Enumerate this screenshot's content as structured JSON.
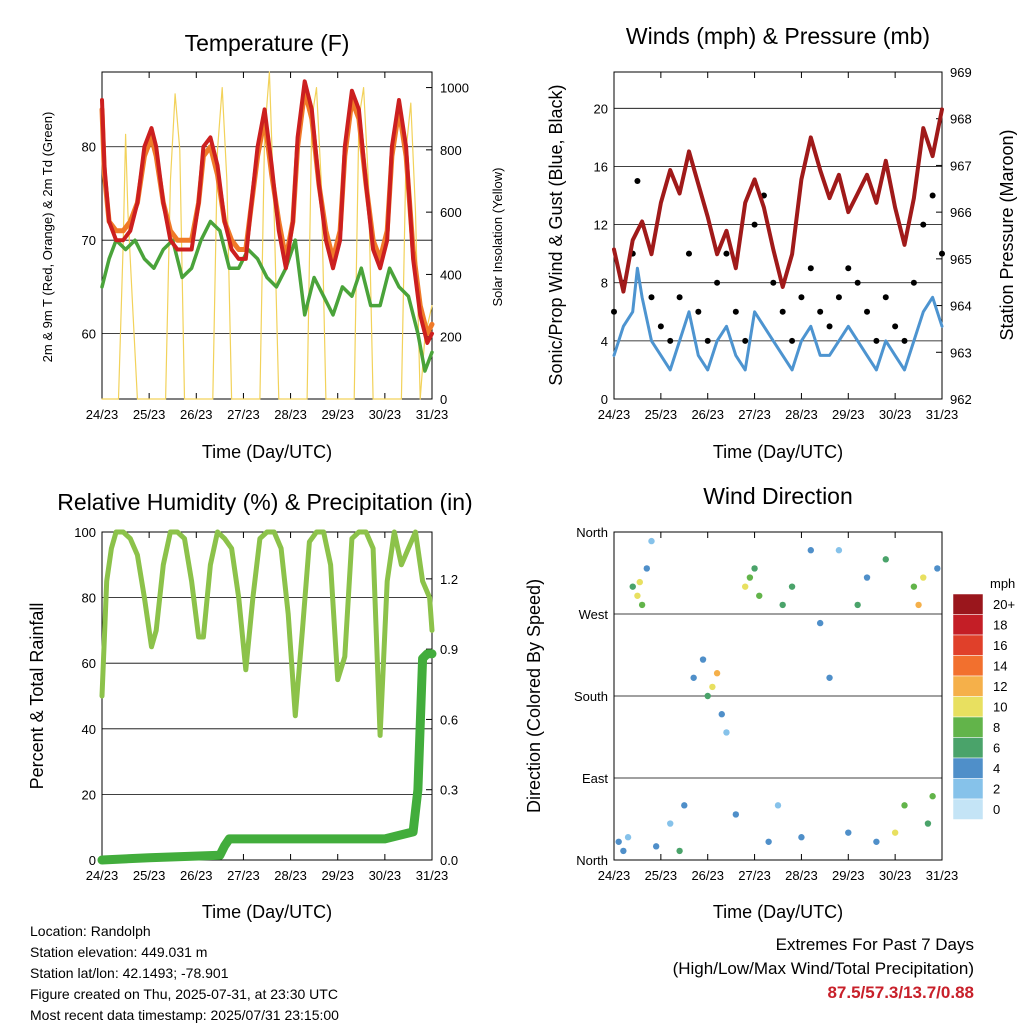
{
  "time_ticks": [
    "24/23",
    "25/23",
    "26/23",
    "27/23",
    "28/23",
    "29/23",
    "30/23",
    "31/23"
  ],
  "colors": {
    "t2m": "#cc1f1f",
    "t9m": "#f07a28",
    "td": "#4aa33a",
    "solar": "#f2d25a",
    "wind": "#4d94d0",
    "gust": "#000000",
    "pressure": "#a01a1a",
    "rh": "#8cc24a",
    "precip": "#42ad3c"
  },
  "chart_data": [
    {
      "type": "line",
      "title": "Temperature (F)",
      "xlabel": "Time (Day/UTC)",
      "ylabel": "2m & 9m T (Red, Orange) & 2m Td (Green)",
      "y2label": "Solar Insolation (Yellow)",
      "ylim": [
        53,
        88
      ],
      "y2lim": [
        0,
        1050
      ],
      "yticks": [
        60,
        70,
        80
      ],
      "y2ticks": [
        0,
        200,
        400,
        600,
        800,
        1000
      ],
      "series": [
        {
          "name": "2m T",
          "x_days": [
            0,
            0.05,
            0.15,
            0.3,
            0.45,
            0.6,
            0.75,
            0.9,
            1.05,
            1.15,
            1.3,
            1.45,
            1.6,
            1.75,
            1.9,
            2.05,
            2.15,
            2.3,
            2.45,
            2.6,
            2.75,
            2.9,
            3.05,
            3.15,
            3.3,
            3.45,
            3.6,
            3.75,
            3.9,
            4.05,
            4.15,
            4.3,
            4.45,
            4.6,
            4.75,
            4.9,
            5.05,
            5.15,
            5.3,
            5.45,
            5.6,
            5.75,
            5.9,
            6.05,
            6.15,
            6.3,
            6.45,
            6.6,
            6.75,
            6.9,
            7.0
          ],
          "values": [
            85,
            78,
            72,
            70,
            70,
            71,
            74,
            80,
            82,
            80,
            74,
            70,
            69,
            69,
            69,
            74,
            80,
            81,
            78,
            72,
            69,
            68,
            68,
            73,
            80,
            84,
            78,
            71,
            67,
            72,
            81,
            87,
            84,
            76,
            70,
            67,
            70,
            80,
            86,
            84,
            76,
            69,
            67,
            70,
            80,
            85,
            80,
            68,
            62,
            59,
            60
          ]
        },
        {
          "name": "9m T",
          "x_days": [
            0,
            0.05,
            0.15,
            0.3,
            0.45,
            0.6,
            0.75,
            0.9,
            1.05,
            1.15,
            1.3,
            1.45,
            1.6,
            1.75,
            1.9,
            2.05,
            2.15,
            2.3,
            2.45,
            2.6,
            2.75,
            2.9,
            3.05,
            3.15,
            3.3,
            3.45,
            3.6,
            3.75,
            3.9,
            4.05,
            4.15,
            4.3,
            4.45,
            4.6,
            4.75,
            4.9,
            5.05,
            5.15,
            5.3,
            5.45,
            5.6,
            5.75,
            5.9,
            6.05,
            6.15,
            6.3,
            6.45,
            6.6,
            6.75,
            6.9,
            7.0
          ],
          "values": [
            84,
            77,
            72,
            71,
            71,
            72,
            74,
            79,
            81,
            79,
            74,
            71,
            70,
            70,
            70,
            74,
            79,
            80,
            77,
            72,
            70,
            69,
            69,
            73,
            79,
            83,
            77,
            72,
            68,
            72,
            80,
            86,
            83,
            76,
            71,
            68,
            71,
            79,
            85,
            83,
            76,
            70,
            68,
            71,
            79,
            84,
            79,
            69,
            63,
            60,
            61
          ]
        },
        {
          "name": "2m Td",
          "x_days": [
            0,
            0.15,
            0.3,
            0.5,
            0.7,
            0.9,
            1.1,
            1.3,
            1.5,
            1.7,
            1.9,
            2.1,
            2.3,
            2.5,
            2.7,
            2.9,
            3.1,
            3.3,
            3.5,
            3.7,
            3.9,
            4.1,
            4.3,
            4.5,
            4.7,
            4.9,
            5.1,
            5.3,
            5.5,
            5.7,
            5.9,
            6.1,
            6.3,
            6.5,
            6.7,
            6.85,
            7.0
          ],
          "values": [
            65,
            68,
            70,
            69,
            70,
            68,
            67,
            69,
            70,
            66,
            67,
            70,
            72,
            71,
            67,
            67,
            69,
            68,
            66,
            65,
            67,
            70,
            62,
            66,
            64,
            62,
            65,
            64,
            67,
            63,
            63,
            67,
            65,
            64,
            60,
            56,
            58
          ]
        },
        {
          "name": "Solar Insolation",
          "axis": "y2",
          "x_days": [
            0,
            0.35,
            0.45,
            0.5,
            0.55,
            0.65,
            0.75,
            1.35,
            1.45,
            1.55,
            1.65,
            1.75,
            2.35,
            2.45,
            2.55,
            2.65,
            2.75,
            3.35,
            3.45,
            3.55,
            3.65,
            3.75,
            4.35,
            4.45,
            4.55,
            4.65,
            4.75,
            5.35,
            5.45,
            5.55,
            5.65,
            5.75,
            6.35,
            6.45,
            6.55,
            6.65,
            6.75,
            6.85,
            7.0
          ],
          "values": [
            0,
            0,
            500,
            850,
            600,
            300,
            0,
            0,
            700,
            980,
            800,
            0,
            0,
            800,
            1000,
            700,
            0,
            0,
            850,
            1050,
            600,
            0,
            0,
            900,
            1000,
            700,
            0,
            0,
            900,
            1000,
            700,
            0,
            0,
            800,
            950,
            600,
            0,
            200,
            300
          ]
        }
      ]
    },
    {
      "type": "line",
      "title": "Winds (mph) & Pressure (mb)",
      "xlabel": "Time (Day/UTC)",
      "ylabel": "Sonic/Prop Wind & Gust (Blue, Black)",
      "y2label": "Station Pressure (Maroon)",
      "ylim": [
        0,
        22.5
      ],
      "y2lim": [
        962,
        969
      ],
      "yticks": [
        0,
        4,
        8,
        12,
        16,
        20
      ],
      "y2ticks": [
        962,
        963,
        964,
        965,
        966,
        967,
        968,
        969
      ],
      "series": [
        {
          "name": "Sonic/Prop Wind",
          "x_days": [
            0,
            0.2,
            0.4,
            0.5,
            0.6,
            0.8,
            1.0,
            1.2,
            1.4,
            1.6,
            1.8,
            2.0,
            2.2,
            2.4,
            2.6,
            2.8,
            3.0,
            3.2,
            3.4,
            3.6,
            3.8,
            4.0,
            4.2,
            4.4,
            4.6,
            4.8,
            5.0,
            5.2,
            5.4,
            5.6,
            5.8,
            6.0,
            6.2,
            6.4,
            6.6,
            6.8,
            7.0
          ],
          "values": [
            3,
            5,
            6,
            9,
            7,
            4,
            3,
            2,
            4,
            6,
            3,
            2,
            4,
            5,
            3,
            2,
            6,
            5,
            4,
            3,
            2,
            4,
            5,
            3,
            3,
            4,
            5,
            4,
            3,
            2,
            4,
            3,
            2,
            4,
            6,
            7,
            5
          ]
        },
        {
          "name": "Gust",
          "x_days": [
            0,
            0.2,
            0.4,
            0.5,
            0.6,
            0.8,
            1.0,
            1.2,
            1.4,
            1.6,
            1.8,
            2.0,
            2.2,
            2.4,
            2.6,
            2.8,
            3.0,
            3.2,
            3.4,
            3.6,
            3.8,
            4.0,
            4.2,
            4.4,
            4.6,
            4.8,
            5.0,
            5.2,
            5.4,
            5.6,
            5.8,
            6.0,
            6.2,
            6.4,
            6.6,
            6.8,
            7.0
          ],
          "values": [
            6,
            8,
            10,
            15,
            12,
            7,
            5,
            4,
            7,
            10,
            6,
            4,
            8,
            10,
            6,
            4,
            12,
            14,
            8,
            6,
            4,
            7,
            9,
            6,
            5,
            7,
            9,
            8,
            6,
            4,
            7,
            5,
            4,
            8,
            12,
            14,
            10
          ]
        },
        {
          "name": "Station Pressure",
          "axis": "y2",
          "x_days": [
            0,
            0.2,
            0.4,
            0.6,
            0.8,
            1.0,
            1.2,
            1.4,
            1.6,
            1.8,
            2.0,
            2.2,
            2.4,
            2.6,
            2.8,
            3.0,
            3.2,
            3.4,
            3.6,
            3.8,
            4.0,
            4.2,
            4.4,
            4.6,
            4.8,
            5.0,
            5.2,
            5.4,
            5.6,
            5.8,
            6.0,
            6.2,
            6.4,
            6.6,
            6.8,
            7.0
          ],
          "values": [
            965.2,
            964.3,
            965.4,
            965.8,
            965.1,
            966.2,
            966.9,
            966.4,
            967.3,
            966.6,
            965.9,
            965.1,
            965.6,
            964.8,
            966.2,
            966.7,
            966.1,
            965.2,
            964.4,
            965.1,
            966.7,
            967.6,
            966.9,
            966.3,
            966.8,
            966.0,
            966.4,
            966.8,
            966.2,
            967.1,
            966.1,
            965.3,
            966.3,
            967.8,
            967.2,
            968.2
          ]
        }
      ]
    },
    {
      "type": "line",
      "title": "Relative Humidity (%) & Precipitation (in)",
      "xlabel": "Time (Day/UTC)",
      "ylabel": "Percent & Total Rainfall",
      "ylim": [
        0,
        100
      ],
      "y2lim": [
        0,
        1.4
      ],
      "yticks": [
        0,
        20,
        40,
        60,
        80,
        100
      ],
      "y2ticks": [
        "0.0",
        "0.3",
        "0.6",
        "0.9",
        "1.2"
      ],
      "series": [
        {
          "name": "Relative Humidity",
          "x_days": [
            0,
            0.1,
            0.2,
            0.3,
            0.45,
            0.6,
            0.75,
            0.9,
            1.05,
            1.15,
            1.3,
            1.45,
            1.6,
            1.75,
            1.9,
            2.05,
            2.15,
            2.3,
            2.45,
            2.6,
            2.75,
            2.9,
            3.05,
            3.2,
            3.35,
            3.5,
            3.65,
            3.8,
            3.95,
            4.1,
            4.25,
            4.4,
            4.55,
            4.7,
            4.85,
            5.0,
            5.15,
            5.3,
            5.45,
            5.6,
            5.75,
            5.9,
            6.05,
            6.2,
            6.35,
            6.5,
            6.65,
            6.8,
            6.95,
            7.0
          ],
          "values": [
            50,
            85,
            95,
            100,
            100,
            98,
            93,
            80,
            65,
            70,
            90,
            100,
            100,
            98,
            85,
            68,
            68,
            90,
            100,
            98,
            95,
            80,
            58,
            80,
            98,
            100,
            100,
            95,
            75,
            44,
            70,
            97,
            100,
            100,
            90,
            55,
            62,
            98,
            100,
            100,
            95,
            38,
            85,
            100,
            90,
            95,
            100,
            85,
            80,
            70
          ]
        },
        {
          "name": "Total Precipitation",
          "axis": "y2",
          "x_days": [
            0,
            1.0,
            2.5,
            2.6,
            2.7,
            4.0,
            5.0,
            6.0,
            6.6,
            6.7,
            6.8,
            6.9,
            7.0
          ],
          "values": [
            0,
            0.01,
            0.02,
            0.06,
            0.09,
            0.09,
            0.09,
            0.09,
            0.12,
            0.3,
            0.86,
            0.88,
            0.88
          ]
        }
      ]
    },
    {
      "type": "scatter",
      "title": "Wind Direction",
      "xlabel": "Time (Day/UTC)",
      "ylabel": "Direction (Colored By Speed)",
      "ylim": [
        0,
        360
      ],
      "yticks": [
        "North",
        "East",
        "South",
        "West",
        "North"
      ],
      "legend": {
        "title": "mph",
        "labels": [
          "0",
          "2",
          "4",
          "6",
          "8",
          "10",
          "12",
          "14",
          "16",
          "18",
          "20+"
        ],
        "colors": [
          "#c4e4f6",
          "#86c2ea",
          "#4f8fc9",
          "#4aa36a",
          "#62b44a",
          "#e8e060",
          "#f5b04a",
          "#f2702e",
          "#e0402a",
          "#c41e26",
          "#9a161c"
        ]
      },
      "points": [
        [
          0.1,
          20,
          3
        ],
        [
          0.2,
          10,
          4
        ],
        [
          0.3,
          25,
          2
        ],
        [
          0.4,
          300,
          6
        ],
        [
          0.5,
          290,
          10
        ],
        [
          0.55,
          305,
          9
        ],
        [
          0.6,
          280,
          7
        ],
        [
          0.7,
          320,
          4
        ],
        [
          0.8,
          350,
          2
        ],
        [
          0.9,
          15,
          3
        ],
        [
          1.2,
          40,
          2
        ],
        [
          1.4,
          10,
          5
        ],
        [
          1.5,
          60,
          3
        ],
        [
          1.7,
          200,
          3
        ],
        [
          1.9,
          220,
          4
        ],
        [
          2.0,
          180,
          5
        ],
        [
          2.1,
          190,
          10
        ],
        [
          2.2,
          205,
          12
        ],
        [
          2.3,
          160,
          4
        ],
        [
          2.4,
          140,
          2
        ],
        [
          2.6,
          50,
          3
        ],
        [
          2.8,
          300,
          9
        ],
        [
          2.9,
          310,
          8
        ],
        [
          3.0,
          320,
          5
        ],
        [
          3.1,
          290,
          7
        ],
        [
          3.3,
          20,
          4
        ],
        [
          3.5,
          60,
          2
        ],
        [
          3.6,
          280,
          5
        ],
        [
          3.8,
          300,
          6
        ],
        [
          4.0,
          25,
          3
        ],
        [
          4.2,
          340,
          4
        ],
        [
          4.4,
          260,
          3
        ],
        [
          4.6,
          200,
          4
        ],
        [
          4.8,
          340,
          2
        ],
        [
          5.0,
          30,
          3
        ],
        [
          5.2,
          280,
          6
        ],
        [
          5.4,
          310,
          4
        ],
        [
          5.6,
          20,
          3
        ],
        [
          5.8,
          330,
          6
        ],
        [
          6.0,
          30,
          9
        ],
        [
          6.2,
          60,
          7
        ],
        [
          6.4,
          300,
          8
        ],
        [
          6.5,
          280,
          11
        ],
        [
          6.6,
          310,
          10
        ],
        [
          6.7,
          40,
          5
        ],
        [
          6.8,
          70,
          8
        ],
        [
          6.9,
          320,
          4
        ]
      ]
    }
  ],
  "info": {
    "location": "Location: Randolph",
    "elevation": "Station elevation: 449.031 m",
    "latlon": "Station lat/lon: 42.1493; -78.901",
    "created": "Figure created on Thu, 2025-07-31, at 23:30 UTC",
    "recent": "Most recent data timestamp: 2025/07/31 23:15:00"
  },
  "extremes": {
    "title": "Extremes For Past 7 Days",
    "subtitle": "(High/Low/Max Wind/Total Precipitation)",
    "values": "87.5/57.3/13.7/0.88"
  }
}
